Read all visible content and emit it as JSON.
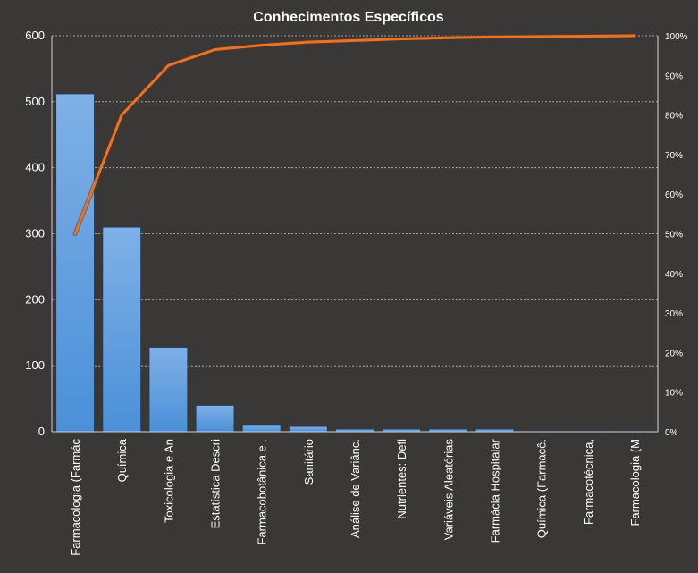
{
  "chart_data": {
    "type": "bar",
    "title": "Conhecimentos Específicos",
    "categories": [
      "Farmacologia (Farmác",
      "Química",
      "Toxicologia e An",
      "Estatística Descri",
      "Farmacobotânica e .",
      "Sanitário",
      "Análise de Variânc.",
      "Nutrientes: Defi",
      "Variáveis Aleatórias",
      "Farmácia Hospitalar",
      "Química (Farmacê.",
      "Farmacotécnica,",
      "Farmacologia (M"
    ],
    "series": [
      {
        "type": "bar",
        "values": [
          512,
          310,
          128,
          40,
          11,
          8,
          4,
          4,
          4,
          4,
          1,
          1,
          1
        ],
        "color": "#4a90d9"
      },
      {
        "type": "line",
        "axis": "right",
        "values": [
          50,
          80,
          92.5,
          96.5,
          97.6,
          98.4,
          98.8,
          99.2,
          99.5,
          99.7,
          99.8,
          99.9,
          100
        ],
        "color": "#e8742a"
      }
    ],
    "ylim": [
      0,
      600
    ],
    "yticks": [
      "0",
      "100",
      "200",
      "300",
      "400",
      "500",
      "600"
    ],
    "y2lim": [
      0,
      100
    ],
    "y2ticks": [
      "0%",
      "10%",
      "20%",
      "30%",
      "40%",
      "50%",
      "60%",
      "70%",
      "80%",
      "90%",
      "100%"
    ],
    "grid": true,
    "legend": "none"
  }
}
